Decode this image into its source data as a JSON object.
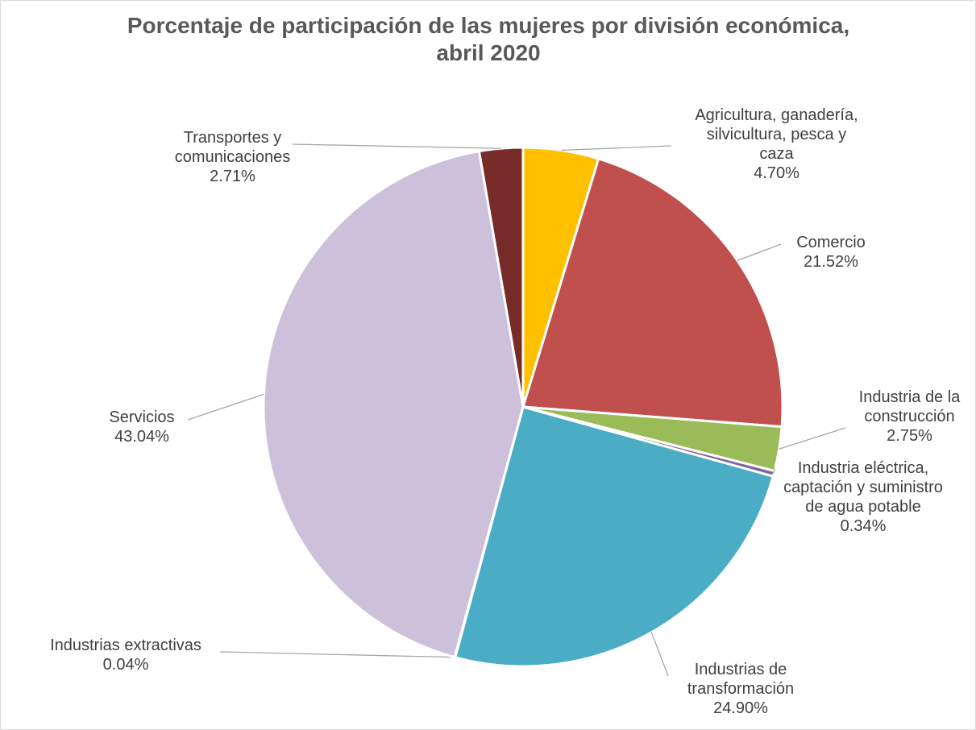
{
  "chart_data": {
    "type": "pie",
    "title": "Porcentaje de participación de las mujeres por división económica, abril 2020",
    "categories": [
      "Agricultura, ganadería, silvicultura, pesca y caza",
      "Comercio",
      "Industria de la construcción",
      "Industria eléctrica, captación y suministro de agua potable",
      "Industrias de transformación",
      "Industrias extractivas",
      "Servicios",
      "Transportes y comunicaciones"
    ],
    "values": [
      4.7,
      21.52,
      2.75,
      0.34,
      24.9,
      0.04,
      43.04,
      2.71
    ],
    "value_labels": [
      "4.70%",
      "21.52%",
      "2.75%",
      "0.34%",
      "24.90%",
      "0.04%",
      "43.04%",
      "2.71%"
    ],
    "colors": [
      "#ffc000",
      "#c0504d",
      "#9bbb59",
      "#8064a2",
      "#4bacc6",
      "#f79646",
      "#ccc0da",
      "#772c2a"
    ]
  }
}
